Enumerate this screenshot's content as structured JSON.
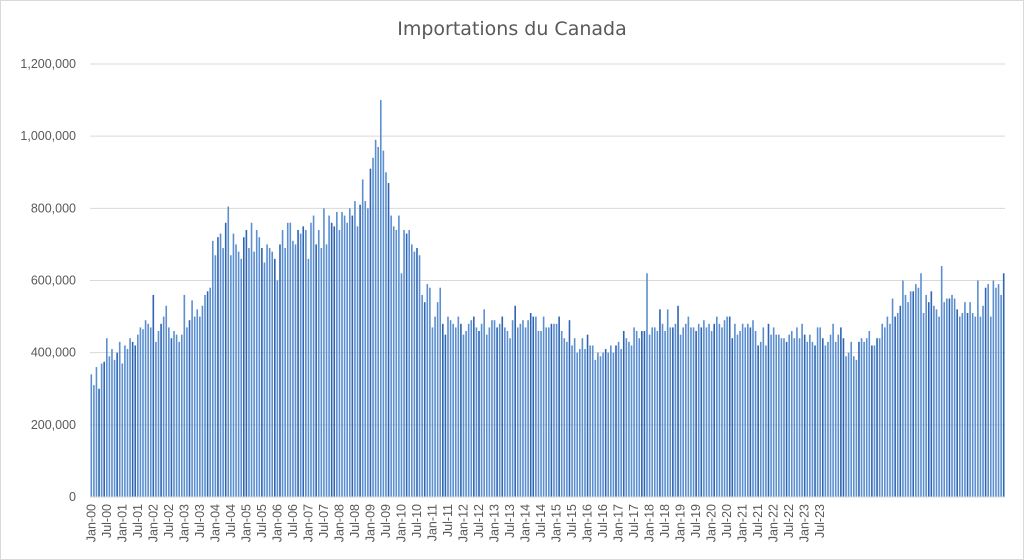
{
  "chart_data": {
    "type": "bar",
    "title": "Importations du Canada",
    "xlabel": "",
    "ylabel": "",
    "ylim": [
      0,
      1200000
    ],
    "yticks": [
      0,
      200000,
      400000,
      600000,
      800000,
      1000000,
      1200000
    ],
    "ytick_labels": [
      "0",
      "200,000",
      "400,000",
      "600,000",
      "800,000",
      "1,000,000",
      "1,200,000"
    ],
    "grid": true,
    "legend": "none",
    "bar_color": "#5b8fd0",
    "bar_dark_color": "#2e64b3",
    "grid_color": "#d9d9d9",
    "x_tick_labels": [
      "Jan-00",
      "Jul-00",
      "Jan-01",
      "Jul-01",
      "Jan-02",
      "Jul-02",
      "Jan-03",
      "Jul-03",
      "Jan-04",
      "Jul-04",
      "Jan-05",
      "Jul-05",
      "Jan-06",
      "Jul-06",
      "Jan-07",
      "Jul-07",
      "Jan-08",
      "Jul-08",
      "Jan-09",
      "Jul-09",
      "Jan-10",
      "Jul-10",
      "Jan-11",
      "Jul-11",
      "Jan-12",
      "Jul-12",
      "Jan-13",
      "Jul-13",
      "Jan-14",
      "Jul-14",
      "Jan-15",
      "Jul-15",
      "Jan-16",
      "Jul-16",
      "Jan-17",
      "Jul-17",
      "Jan-18",
      "Jul-18",
      "Jan-19",
      "Jul-19",
      "Jan-20",
      "Jul-20",
      "Jan-21",
      "Jul-21",
      "Jan-22",
      "Jul-22",
      "Jan-23",
      "Jul-23"
    ],
    "series": [
      {
        "start": "Jan-00",
        "values": [
          340000,
          310000,
          360000,
          300000,
          370000,
          375000,
          440000,
          390000,
          410000,
          380000,
          400000,
          430000,
          370000,
          420000,
          410000,
          440000,
          430000,
          420000,
          450000,
          470000,
          465000,
          490000,
          480000,
          470000,
          560000,
          430000,
          460000,
          480000,
          500000,
          530000,
          470000,
          440000,
          460000,
          450000,
          430000,
          450000,
          560000,
          470000,
          490000,
          545000,
          500000,
          520000,
          500000,
          530000,
          560000,
          570000,
          580000,
          710000,
          670000,
          720000,
          730000,
          690000,
          760000,
          805000,
          670000,
          730000,
          700000,
          680000,
          660000,
          720000,
          740000,
          690000,
          760000,
          680000,
          740000,
          720000,
          690000,
          650000,
          700000,
          690000,
          680000,
          660000,
          600000,
          700000,
          740000,
          690000,
          760000,
          760000,
          710000,
          700000,
          740000,
          730000,
          750000,
          740000,
          660000,
          760000,
          780000,
          700000,
          740000,
          690000,
          800000,
          700000,
          780000,
          760000,
          750000,
          790000,
          740000,
          790000,
          780000,
          760000,
          800000,
          780000,
          820000,
          750000,
          810000,
          880000,
          820000,
          800000,
          910000,
          940000,
          990000,
          970000,
          1100000,
          960000,
          900000,
          870000,
          780000,
          750000,
          740000,
          780000,
          620000,
          740000,
          730000,
          740000,
          700000,
          680000,
          690000,
          670000,
          560000,
          540000,
          590000,
          580000,
          470000,
          500000,
          540000,
          580000,
          480000,
          450000,
          500000,
          490000,
          480000,
          470000,
          500000,
          480000,
          450000,
          460000,
          480000,
          490000,
          500000,
          470000,
          460000,
          480000,
          520000,
          450000,
          470000,
          490000,
          490000,
          470000,
          480000,
          500000,
          470000,
          460000,
          440000,
          490000,
          530000,
          470000,
          480000,
          490000,
          470000,
          490000,
          510000,
          500000,
          500000,
          460000,
          460000,
          500000,
          470000,
          470000,
          480000,
          480000,
          480000,
          500000,
          460000,
          440000,
          430000,
          490000,
          420000,
          440000,
          400000,
          410000,
          440000,
          410000,
          450000,
          420000,
          420000,
          380000,
          400000,
          390000,
          400000,
          410000,
          400000,
          420000,
          400000,
          420000,
          430000,
          410000,
          460000,
          440000,
          430000,
          420000,
          470000,
          460000,
          440000,
          460000,
          460000,
          620000,
          450000,
          470000,
          470000,
          460000,
          520000,
          480000,
          460000,
          520000,
          470000,
          470000,
          480000,
          530000,
          450000,
          470000,
          480000,
          500000,
          470000,
          470000,
          460000,
          480000,
          470000,
          490000,
          470000,
          480000,
          460000,
          480000,
          500000,
          480000,
          470000,
          490000,
          500000,
          500000,
          440000,
          480000,
          450000,
          460000,
          480000,
          470000,
          480000,
          470000,
          490000,
          460000,
          420000,
          430000,
          470000,
          420000,
          480000,
          450000,
          470000,
          450000,
          450000,
          440000,
          440000,
          430000,
          450000,
          460000,
          440000,
          470000,
          440000,
          480000,
          450000,
          430000,
          450000,
          430000,
          420000,
          470000,
          470000,
          440000,
          420000,
          430000,
          450000,
          480000,
          430000,
          450000,
          470000,
          440000,
          390000,
          400000,
          430000,
          390000,
          380000,
          430000,
          440000,
          430000,
          440000,
          460000,
          420000,
          420000,
          440000,
          440000,
          480000,
          470000,
          500000,
          480000,
          550000,
          500000,
          510000,
          530000,
          600000,
          560000,
          540000,
          570000,
          570000,
          590000,
          580000,
          620000,
          510000,
          560000,
          540000,
          570000,
          530000,
          520000,
          500000,
          640000,
          540000,
          550000,
          550000,
          560000,
          550000,
          520000,
          500000,
          510000,
          540000,
          510000,
          540000,
          510000,
          500000,
          600000,
          500000,
          530000,
          580000,
          590000,
          500000,
          600000,
          580000,
          590000,
          560000,
          620000
        ]
      }
    ]
  }
}
